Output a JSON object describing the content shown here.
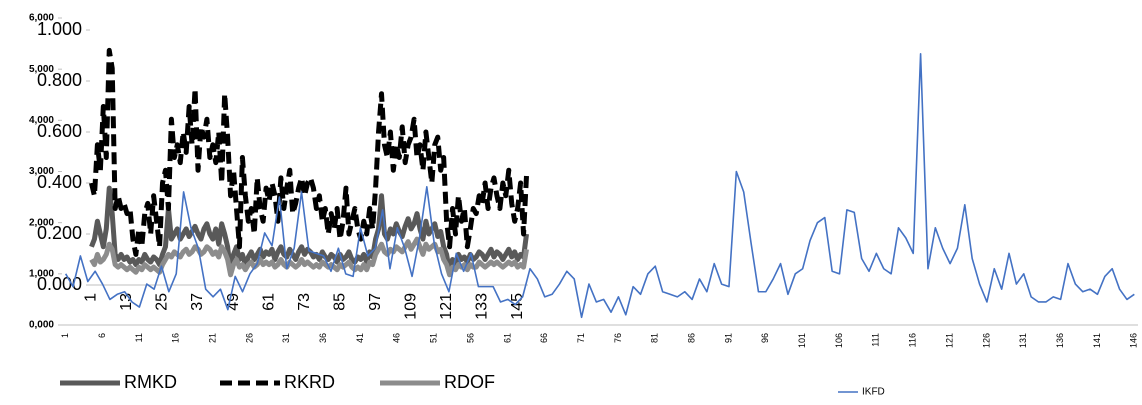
{
  "chart_data": [
    {
      "type": "line",
      "legend": "bottom",
      "categories": [
        "1",
        null,
        null,
        null,
        null,
        null,
        null,
        null,
        null,
        null,
        null,
        null,
        "13",
        null,
        null,
        null,
        null,
        null,
        null,
        null,
        null,
        null,
        null,
        null,
        "25",
        null,
        null,
        null,
        null,
        null,
        null,
        null,
        null,
        null,
        null,
        null,
        "37",
        null,
        null,
        null,
        null,
        null,
        null,
        null,
        null,
        null,
        null,
        null,
        "49",
        null,
        null,
        null,
        null,
        null,
        null,
        null,
        null,
        null,
        null,
        null,
        "61",
        null,
        null,
        null,
        null,
        null,
        null,
        null,
        null,
        null,
        null,
        null,
        "73",
        null,
        null,
        null,
        null,
        null,
        null,
        null,
        null,
        null,
        null,
        null,
        "85",
        null,
        null,
        null,
        null,
        null,
        null,
        null,
        null,
        null,
        null,
        null,
        "97",
        null,
        null,
        null,
        null,
        null,
        null,
        null,
        null,
        null,
        null,
        null,
        "109",
        null,
        null,
        null,
        null,
        null,
        null,
        null,
        null,
        null,
        null,
        null,
        "121",
        null,
        null,
        null,
        null,
        null,
        null,
        null,
        null,
        null,
        null,
        null,
        "133",
        null,
        null,
        null,
        null,
        null,
        null,
        null,
        null,
        null,
        null,
        null,
        "145",
        null,
        null,
        null
      ],
      "ylim": [
        0,
        1
      ],
      "yticks": [
        {
          "value": 0,
          "label": "0.000"
        },
        {
          "value": 0.2,
          "label": "0.200"
        },
        {
          "value": 0.4,
          "label": "0.400"
        },
        {
          "value": 0.6,
          "label": "0.600"
        },
        {
          "value": 0.8,
          "label": "0.800"
        },
        {
          "value": 1,
          "label": "1.000"
        }
      ],
      "series": [
        {
          "name": "RMKD",
          "color": "#595959",
          "dash": "solid",
          "values": [
            0.15,
            0.18,
            0.25,
            0.2,
            0.15,
            0.22,
            0.38,
            0.28,
            0.12,
            0.1,
            0.12,
            0.1,
            0.11,
            0.09,
            0.1,
            0.08,
            0.1,
            0.09,
            0.12,
            0.1,
            0.09,
            0.11,
            0.1,
            0.08,
            0.12,
            0.15,
            0.3,
            0.18,
            0.2,
            0.22,
            0.18,
            0.2,
            0.22,
            0.19,
            0.21,
            0.23,
            0.2,
            0.18,
            0.22,
            0.24,
            0.2,
            0.18,
            0.22,
            0.16,
            0.24,
            0.2,
            0.15,
            0.05,
            0.12,
            0.15,
            0.1,
            0.12,
            0.08,
            0.11,
            0.13,
            0.1,
            0.12,
            0.14,
            0.11,
            0.13,
            0.12,
            0.14,
            0.1,
            0.13,
            0.15,
            0.12,
            0.11,
            0.14,
            0.12,
            0.1,
            0.13,
            0.15,
            0.12,
            0.14,
            0.13,
            0.11,
            0.12,
            0.1,
            0.13,
            0.11,
            0.1,
            0.12,
            0.11,
            0.09,
            0.12,
            0.1,
            0.11,
            0.13,
            0.1,
            0.09,
            0.11,
            0.1,
            0.12,
            0.09,
            0.13,
            0.11,
            0.18,
            0.22,
            0.35,
            0.2,
            0.18,
            0.22,
            0.2,
            0.24,
            0.21,
            0.19,
            0.23,
            0.26,
            0.22,
            0.24,
            0.28,
            0.22,
            0.18,
            0.25,
            0.2,
            0.22,
            0.24,
            0.19,
            0.21,
            0.15,
            0.12,
            0.05,
            0.1,
            0.08,
            0.12,
            0.1,
            0.11,
            0.09,
            0.12,
            0.1,
            0.11,
            0.13,
            0.12,
            0.1,
            0.12,
            0.14,
            0.11,
            0.13,
            0.12,
            0.1,
            0.12,
            0.14,
            0.11,
            0.13,
            0.1,
            0.12,
            0.11,
            0.2
          ]
        },
        {
          "name": "RKRD",
          "color": "#000000",
          "dash": "dashed",
          "values": [
            0.4,
            0.35,
            0.55,
            0.45,
            0.7,
            0.5,
            0.92,
            0.85,
            0.3,
            0.35,
            0.3,
            0.32,
            0.28,
            0.3,
            0.18,
            0.12,
            0.22,
            0.15,
            0.28,
            0.32,
            0.2,
            0.35,
            0.25,
            0.15,
            0.4,
            0.45,
            0.3,
            0.65,
            0.5,
            0.55,
            0.48,
            0.6,
            0.52,
            0.7,
            0.55,
            0.77,
            0.45,
            0.62,
            0.58,
            0.65,
            0.5,
            0.55,
            0.48,
            0.6,
            0.4,
            0.75,
            0.58,
            0.35,
            0.45,
            0.3,
            0.15,
            0.5,
            0.35,
            0.25,
            0.3,
            0.2,
            0.42,
            0.3,
            0.25,
            0.38,
            0.33,
            0.4,
            0.35,
            0.25,
            0.42,
            0.3,
            0.38,
            0.45,
            0.28,
            0.32,
            0.38,
            0.42,
            0.35,
            0.4,
            0.42,
            0.38,
            0.3,
            0.35,
            0.25,
            0.3,
            0.2,
            0.28,
            0.22,
            0.3,
            0.18,
            0.25,
            0.38,
            0.2,
            0.25,
            0.3,
            0.22,
            0.18,
            0.25,
            0.2,
            0.3,
            0.22,
            0.38,
            0.6,
            0.75,
            0.55,
            0.5,
            0.6,
            0.45,
            0.55,
            0.5,
            0.62,
            0.48,
            0.55,
            0.58,
            0.65,
            0.5,
            0.55,
            0.45,
            0.6,
            0.5,
            0.4,
            0.55,
            0.58,
            0.45,
            0.5,
            0.25,
            0.15,
            0.3,
            0.2,
            0.35,
            0.25,
            0.3,
            0.15,
            0.22,
            0.3,
            0.28,
            0.35,
            0.32,
            0.4,
            0.3,
            0.38,
            0.42,
            0.35,
            0.3,
            0.4,
            0.35,
            0.45,
            0.32,
            0.25,
            0.3,
            0.4,
            0.2,
            0.43
          ]
        },
        {
          "name": "RDOF",
          "color": "#8c8c8c",
          "dash": "solid",
          "values": [
            0.1,
            0.08,
            0.12,
            0.09,
            0.1,
            0.12,
            0.16,
            0.14,
            0.08,
            0.07,
            0.08,
            0.07,
            0.06,
            0.07,
            0.06,
            0.05,
            0.07,
            0.06,
            0.08,
            0.07,
            0.06,
            0.07,
            0.06,
            0.05,
            0.08,
            0.1,
            0.12,
            0.11,
            0.13,
            0.12,
            0.11,
            0.13,
            0.14,
            0.12,
            0.13,
            0.15,
            0.14,
            0.12,
            0.13,
            0.15,
            0.14,
            0.12,
            0.13,
            0.11,
            0.15,
            0.13,
            0.1,
            0.04,
            0.08,
            0.1,
            0.07,
            0.08,
            0.06,
            0.08,
            0.09,
            0.07,
            0.08,
            0.1,
            0.08,
            0.09,
            0.08,
            0.09,
            0.07,
            0.08,
            0.1,
            0.08,
            0.07,
            0.09,
            0.08,
            0.07,
            0.08,
            0.1,
            0.08,
            0.09,
            0.08,
            0.07,
            0.08,
            0.07,
            0.09,
            0.08,
            0.07,
            0.08,
            0.07,
            0.06,
            0.08,
            0.07,
            0.08,
            0.09,
            0.07,
            0.06,
            0.07,
            0.06,
            0.08,
            0.06,
            0.09,
            0.08,
            0.12,
            0.14,
            0.16,
            0.13,
            0.12,
            0.14,
            0.13,
            0.15,
            0.14,
            0.13,
            0.15,
            0.17,
            0.14,
            0.16,
            0.18,
            0.15,
            0.12,
            0.16,
            0.14,
            0.15,
            0.16,
            0.13,
            0.14,
            0.1,
            0.08,
            0.04,
            0.07,
            0.06,
            0.08,
            0.07,
            0.08,
            0.06,
            0.08,
            0.07,
            0.07,
            0.09,
            0.08,
            0.07,
            0.08,
            0.09,
            0.08,
            0.09,
            0.08,
            0.07,
            0.08,
            0.09,
            0.08,
            0.09,
            0.07,
            0.08,
            0.07,
            0.14
          ]
        }
      ]
    },
    {
      "type": "line",
      "legend": "bottom",
      "categories": [
        "1",
        null,
        null,
        null,
        null,
        "6",
        null,
        null,
        null,
        null,
        "11",
        null,
        null,
        null,
        null,
        "16",
        null,
        null,
        null,
        null,
        "21",
        null,
        null,
        null,
        null,
        "26",
        null,
        null,
        null,
        null,
        "31",
        null,
        null,
        null,
        null,
        "36",
        null,
        null,
        null,
        null,
        "41",
        null,
        null,
        null,
        null,
        "46",
        null,
        null,
        null,
        null,
        "51",
        null,
        null,
        null,
        null,
        "56",
        null,
        null,
        null,
        null,
        "61",
        null,
        null,
        null,
        null,
        "66",
        null,
        null,
        null,
        null,
        "71",
        null,
        null,
        null,
        null,
        "76",
        null,
        null,
        null,
        null,
        "81",
        null,
        null,
        null,
        null,
        "86",
        null,
        null,
        null,
        null,
        "91",
        null,
        null,
        null,
        null,
        "96",
        null,
        null,
        null,
        null,
        "101",
        null,
        null,
        null,
        null,
        "106",
        null,
        null,
        null,
        null,
        "111",
        null,
        null,
        null,
        null,
        "116",
        null,
        null,
        null,
        null,
        "121",
        null,
        null,
        null,
        null,
        "126",
        null,
        null,
        null,
        null,
        "131",
        null,
        null,
        null,
        null,
        "136",
        null,
        null,
        null,
        null,
        "141",
        null,
        null,
        null,
        null,
        "146"
      ],
      "ylim": [
        0,
        6000
      ],
      "yticks": [
        {
          "value": 0,
          "label": "0,000"
        },
        {
          "value": 1000,
          "label": "1,000"
        },
        {
          "value": 2000,
          "label": "2,000"
        },
        {
          "value": 3000,
          "label": "3,000"
        },
        {
          "value": 4000,
          "label": "4,000"
        },
        {
          "value": 5000,
          "label": "5,000"
        },
        {
          "value": 6000,
          "label": "6,000"
        }
      ],
      "series": [
        {
          "name": "IKFD",
          "color": "#4472c4",
          "dash": "solid",
          "values": [
            1000,
            750,
            1350,
            850,
            1050,
            800,
            500,
            600,
            650,
            450,
            350,
            800,
            700,
            1150,
            650,
            1000,
            2600,
            1900,
            1500,
            700,
            550,
            700,
            300,
            950,
            650,
            1000,
            1200,
            1800,
            1550,
            2500,
            1100,
            1500,
            2600,
            1450,
            1400,
            1350,
            1050,
            1500,
            1000,
            950,
            1900,
            1350,
            1500,
            2250,
            1100,
            1900,
            1500,
            950,
            1700,
            2700,
            1600,
            1000,
            650,
            1400,
            1050,
            1400,
            750,
            750,
            750,
            450,
            500,
            400,
            550,
            1100,
            900,
            550,
            600,
            800,
            1050,
            900,
            150,
            800,
            450,
            500,
            250,
            550,
            200,
            750,
            600,
            1000,
            1150,
            650,
            600,
            550,
            650,
            500,
            900,
            650,
            1200,
            800,
            750,
            3000,
            2600,
            1600,
            650,
            650,
            900,
            1200,
            600,
            1000,
            1100,
            1650,
            2000,
            2100,
            1050,
            1000,
            2250,
            2200,
            1300,
            1050,
            1400,
            1100,
            1000,
            1900,
            1700,
            1400,
            5300,
            1100,
            1900,
            1500,
            1200,
            1500,
            2350,
            1300,
            800,
            450,
            1100,
            700,
            1400,
            800,
            1000,
            550,
            450,
            450,
            550,
            500,
            1200,
            800,
            650,
            700,
            600,
            950,
            1100,
            700,
            500,
            600
          ]
        }
      ]
    }
  ]
}
